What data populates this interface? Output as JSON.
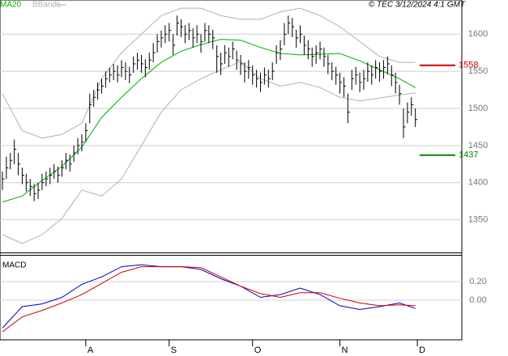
{
  "chart_data": [
    {
      "type": "ohlc",
      "annotation": "© TEC 3/12/2024 4:1 GMT",
      "xlim": [
        -0.6,
        115.7
      ],
      "ylim": [
        1306,
        1646
      ],
      "yticks": [
        1350,
        1400,
        1450,
        1500,
        1550,
        1600
      ],
      "grid": true,
      "bar_color": "#000000",
      "bars": {
        "x": [
          0,
          1,
          2,
          3,
          4,
          5,
          6,
          7,
          8,
          9,
          10,
          11,
          12,
          13,
          14,
          15,
          16,
          17,
          18,
          19,
          20,
          21,
          22,
          23,
          24,
          25,
          26,
          27,
          28,
          29,
          30,
          31,
          32,
          33,
          34,
          35,
          36,
          37,
          38,
          39,
          40,
          41,
          42,
          43,
          44,
          45,
          46,
          47,
          48,
          49,
          50,
          51,
          52,
          53,
          54,
          55,
          56,
          57,
          58,
          59,
          60,
          61,
          62,
          63,
          64,
          65,
          66,
          67,
          68,
          69,
          70,
          71,
          72,
          73,
          74,
          75,
          76,
          77,
          78,
          79,
          80,
          81,
          82,
          83,
          84,
          85,
          86,
          87,
          88,
          89,
          90,
          91,
          92,
          93,
          94,
          95,
          96,
          97,
          98,
          99,
          100,
          101,
          102,
          103,
          104
        ],
        "high": [
          1415,
          1435,
          1440,
          1458,
          1440,
          1420,
          1412,
          1405,
          1398,
          1400,
          1412,
          1415,
          1420,
          1425,
          1422,
          1430,
          1440,
          1438,
          1450,
          1460,
          1465,
          1480,
          1520,
          1525,
          1535,
          1540,
          1550,
          1555,
          1560,
          1558,
          1565,
          1562,
          1556,
          1570,
          1575,
          1572,
          1566,
          1575,
          1588,
          1600,
          1605,
          1612,
          1615,
          1600,
          1625,
          1620,
          1612,
          1615,
          1608,
          1612,
          1600,
          1615,
          1612,
          1606,
          1585,
          1575,
          1585,
          1582,
          1590,
          1578,
          1572,
          1562,
          1565,
          1558,
          1552,
          1548,
          1555,
          1552,
          1562,
          1585,
          1592,
          1615,
          1625,
          1622,
          1606,
          1612,
          1598,
          1592,
          1582,
          1585,
          1590,
          1582,
          1572,
          1562,
          1556,
          1548,
          1542,
          1520,
          1552,
          1556,
          1548,
          1552,
          1562,
          1558,
          1565,
          1562,
          1565,
          1570,
          1558,
          1548,
          1532,
          1500,
          1508,
          1515,
          1500
        ],
        "low": [
          1390,
          1405,
          1418,
          1425,
          1410,
          1398,
          1388,
          1382,
          1375,
          1378,
          1390,
          1395,
          1398,
          1405,
          1400,
          1408,
          1418,
          1415,
          1428,
          1438,
          1442,
          1455,
          1480,
          1502,
          1512,
          1520,
          1528,
          1535,
          1538,
          1535,
          1542,
          1538,
          1534,
          1548,
          1552,
          1548,
          1542,
          1552,
          1562,
          1575,
          1582,
          1588,
          1590,
          1572,
          1598,
          1596,
          1588,
          1592,
          1582,
          1588,
          1575,
          1590,
          1588,
          1580,
          1548,
          1545,
          1560,
          1556,
          1566,
          1552,
          1545,
          1535,
          1540,
          1532,
          1528,
          1522,
          1532,
          1528,
          1538,
          1560,
          1565,
          1585,
          1600,
          1596,
          1582,
          1588,
          1572,
          1566,
          1556,
          1560,
          1566,
          1556,
          1546,
          1538,
          1532,
          1520,
          1515,
          1480,
          1525,
          1532,
          1522,
          1525,
          1536,
          1532,
          1540,
          1536,
          1540,
          1546,
          1530,
          1520,
          1505,
          1460,
          1480,
          1490,
          1475
        ],
        "close": [
          1405,
          1420,
          1430,
          1445,
          1425,
          1410,
          1400,
          1395,
          1385,
          1390,
          1400,
          1405,
          1410,
          1415,
          1410,
          1420,
          1430,
          1425,
          1440,
          1450,
          1455,
          1470,
          1505,
          1515,
          1525,
          1530,
          1540,
          1545,
          1550,
          1545,
          1555,
          1550,
          1545,
          1560,
          1565,
          1560,
          1555,
          1565,
          1575,
          1590,
          1595,
          1600,
          1605,
          1585,
          1615,
          1610,
          1600,
          1605,
          1595,
          1600,
          1590,
          1605,
          1600,
          1595,
          1570,
          1560,
          1575,
          1570,
          1580,
          1565,
          1560,
          1550,
          1555,
          1545,
          1540,
          1535,
          1545,
          1540,
          1550,
          1575,
          1580,
          1600,
          1615,
          1610,
          1595,
          1600,
          1585,
          1580,
          1570,
          1575,
          1580,
          1570,
          1560,
          1550,
          1545,
          1535,
          1530,
          1495,
          1540,
          1545,
          1535,
          1540,
          1550,
          1545,
          1555,
          1550,
          1555,
          1560,
          1545,
          1535,
          1520,
          1475,
          1495,
          1505,
          1485
        ]
      },
      "x": [
        0,
        5,
        10,
        15,
        20,
        25,
        30,
        35,
        40,
        45,
        50,
        55,
        60,
        65,
        70,
        75,
        80,
        85,
        90,
        95,
        100,
        104
      ],
      "ma": {
        "name": "MA20",
        "color": "#00b000",
        "values": [
          1374,
          1382,
          1403,
          1422,
          1448,
          1488,
          1515,
          1540,
          1562,
          1577,
          1586,
          1593,
          1592,
          1582,
          1574,
          1572,
          1573,
          1574,
          1564,
          1552,
          1540,
          1528
        ]
      },
      "bands": {
        "name": "BBands",
        "color": "#b0b0b0",
        "upper": [
          1520,
          1470,
          1460,
          1465,
          1480,
          1540,
          1575,
          1600,
          1625,
          1635,
          1635,
          1625,
          1620,
          1620,
          1630,
          1635,
          1625,
          1610,
          1590,
          1570,
          1562,
          1562
        ],
        "lower": [
          1330,
          1318,
          1330,
          1352,
          1390,
          1382,
          1405,
          1450,
          1495,
          1525,
          1540,
          1552,
          1563,
          1540,
          1530,
          1535,
          1528,
          1515,
          1510,
          1514,
          1518,
          1521
        ]
      },
      "levels": [
        {
          "value": 1558,
          "color": "#d00000"
        },
        {
          "value": 1437,
          "color": "#008800"
        }
      ]
    },
    {
      "type": "line",
      "title": "MACD",
      "xlim": [
        -0.6,
        115.7
      ],
      "ylim": [
        -0.426,
        0.478
      ],
      "yticks": [
        {
          "value": 0.2,
          "label": "0.20"
        },
        {
          "value": 0,
          "label": "0.00"
        }
      ],
      "grid": true,
      "xticks": [
        {
          "value": 21,
          "label": "A"
        },
        {
          "value": 42,
          "label": "S"
        },
        {
          "value": 63,
          "label": "O"
        },
        {
          "value": 85,
          "label": "N"
        },
        {
          "value": 104.5,
          "label": "D"
        }
      ],
      "x": [
        0,
        5,
        10,
        15,
        20,
        25,
        30,
        35,
        40,
        45,
        50,
        55,
        60,
        65,
        70,
        75,
        80,
        85,
        90,
        95,
        100,
        104
      ],
      "series": [
        {
          "color": "#0000cc",
          "values": [
            -0.3,
            -0.07,
            -0.04,
            0.03,
            0.17,
            0.25,
            0.36,
            0.38,
            0.36,
            0.36,
            0.33,
            0.23,
            0.15,
            0.03,
            0.06,
            0.13,
            0.06,
            -0.06,
            -0.1,
            -0.07,
            -0.03,
            -0.09
          ]
        },
        {
          "color": "#cc0000",
          "values": [
            -0.34,
            -0.18,
            -0.11,
            -0.03,
            0.06,
            0.18,
            0.3,
            0.36,
            0.36,
            0.36,
            0.35,
            0.25,
            0.15,
            0.07,
            0.03,
            0.08,
            0.08,
            0.02,
            -0.03,
            -0.06,
            -0.05,
            -0.06
          ]
        }
      ]
    }
  ]
}
